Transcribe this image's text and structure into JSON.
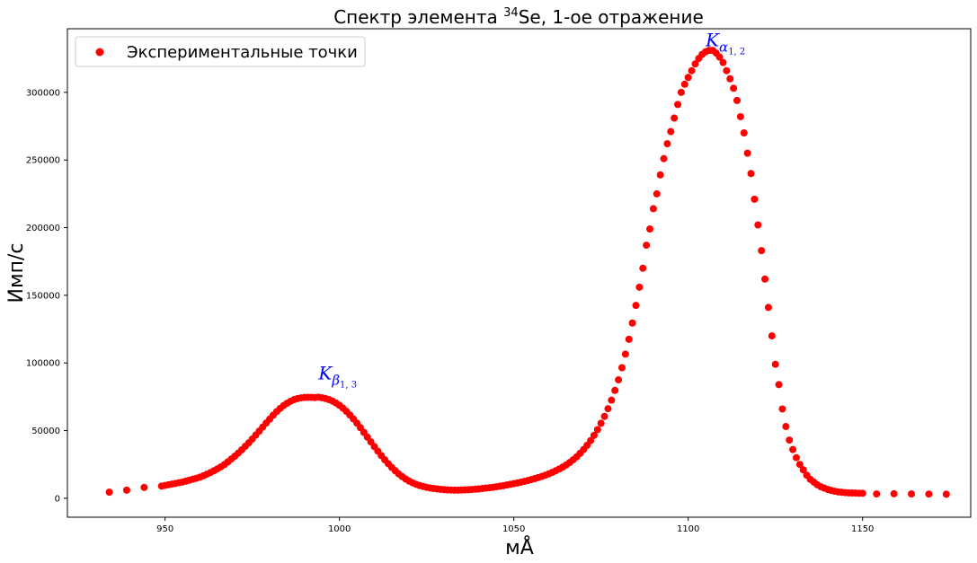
{
  "chart_data": {
    "type": "scatter",
    "title": {
      "prefix": "Спектр элемента ",
      "sup": "34",
      "suffix": "Se, 1-ое отражение"
    },
    "xlabel": "мÅ",
    "ylabel": "Имп/с",
    "xlim": [
      922,
      1181
    ],
    "ylim": [
      -14000,
      347000
    ],
    "xticks": [
      950,
      1000,
      1050,
      1100,
      1150
    ],
    "yticks": [
      0,
      50000,
      100000,
      150000,
      200000,
      250000,
      300000
    ],
    "grid": false,
    "legend": {
      "position": "top-left",
      "entries": [
        "Экспериментальные точки"
      ]
    },
    "marker_color": "#ff0000",
    "annotations": [
      {
        "base": "K",
        "sub": "β",
        "subsub": "1, 3",
        "x": 994,
        "y": 88000
      },
      {
        "base": "K",
        "sub": "α",
        "subsub": "1, 2",
        "x": 1105,
        "y": 334000
      }
    ],
    "series": [
      {
        "name": "Экспериментальные точки",
        "points": [
          [
            934,
            4500
          ],
          [
            939,
            6000
          ],
          [
            944,
            8000
          ],
          [
            949,
            9000
          ],
          [
            950,
            9500
          ],
          [
            951,
            10000
          ],
          [
            952,
            10500
          ],
          [
            953,
            11000
          ],
          [
            954,
            11500
          ],
          [
            955,
            12000
          ],
          [
            956,
            12700
          ],
          [
            957,
            13400
          ],
          [
            958,
            14100
          ],
          [
            959,
            14800
          ],
          [
            960,
            15600
          ],
          [
            961,
            16600
          ],
          [
            962,
            17800
          ],
          [
            963,
            19000
          ],
          [
            964,
            20300
          ],
          [
            965,
            21700
          ],
          [
            966,
            23200
          ],
          [
            967,
            24900
          ],
          [
            968,
            26900
          ],
          [
            969,
            29000
          ],
          [
            970,
            31100
          ],
          [
            971,
            33400
          ],
          [
            972,
            35800
          ],
          [
            973,
            38400
          ],
          [
            974,
            41000
          ],
          [
            975,
            43800
          ],
          [
            976,
            46700
          ],
          [
            977,
            49600
          ],
          [
            978,
            52600
          ],
          [
            979,
            55600
          ],
          [
            980,
            58500
          ],
          [
            981,
            61400
          ],
          [
            982,
            64000
          ],
          [
            983,
            66400
          ],
          [
            984,
            68500
          ],
          [
            985,
            70200
          ],
          [
            986,
            71700
          ],
          [
            987,
            72900
          ],
          [
            988,
            73700
          ],
          [
            989,
            74200
          ],
          [
            990,
            74500
          ],
          [
            991,
            74600
          ],
          [
            992,
            74600
          ],
          [
            993,
            74400
          ],
          [
            994,
            74700
          ],
          [
            995,
            74300
          ],
          [
            996,
            73700
          ],
          [
            997,
            72900
          ],
          [
            998,
            71800
          ],
          [
            999,
            70400
          ],
          [
            1000,
            68700
          ],
          [
            1001,
            66600
          ],
          [
            1002,
            64200
          ],
          [
            1003,
            61500
          ],
          [
            1004,
            58600
          ],
          [
            1005,
            55500
          ],
          [
            1006,
            52200
          ],
          [
            1007,
            48700
          ],
          [
            1008,
            45200
          ],
          [
            1009,
            41700
          ],
          [
            1010,
            38200
          ],
          [
            1011,
            34800
          ],
          [
            1012,
            31500
          ],
          [
            1013,
            28400
          ],
          [
            1014,
            25500
          ],
          [
            1015,
            22800
          ],
          [
            1016,
            20300
          ],
          [
            1017,
            18000
          ],
          [
            1018,
            16000
          ],
          [
            1019,
            14200
          ],
          [
            1020,
            12700
          ],
          [
            1021,
            11400
          ],
          [
            1022,
            10300
          ],
          [
            1023,
            9400
          ],
          [
            1024,
            8700
          ],
          [
            1025,
            8100
          ],
          [
            1026,
            7600
          ],
          [
            1027,
            7200
          ],
          [
            1028,
            6900
          ],
          [
            1029,
            6600
          ],
          [
            1030,
            6400
          ],
          [
            1031,
            6200
          ],
          [
            1032,
            6100
          ],
          [
            1033,
            6000
          ],
          [
            1034,
            6000
          ],
          [
            1035,
            6100
          ],
          [
            1036,
            6200
          ],
          [
            1037,
            6300
          ],
          [
            1038,
            6500
          ],
          [
            1039,
            6700
          ],
          [
            1040,
            6900
          ],
          [
            1041,
            7200
          ],
          [
            1042,
            7500
          ],
          [
            1043,
            7800
          ],
          [
            1044,
            8100
          ],
          [
            1045,
            8500
          ],
          [
            1046,
            8900
          ],
          [
            1047,
            9300
          ],
          [
            1048,
            9800
          ],
          [
            1049,
            10300
          ],
          [
            1050,
            10800
          ],
          [
            1051,
            11300
          ],
          [
            1052,
            11900
          ],
          [
            1053,
            12500
          ],
          [
            1054,
            13100
          ],
          [
            1055,
            13800
          ],
          [
            1056,
            14500
          ],
          [
            1057,
            15300
          ],
          [
            1058,
            16100
          ],
          [
            1059,
            17000
          ],
          [
            1060,
            18000
          ],
          [
            1061,
            19100
          ],
          [
            1062,
            20300
          ],
          [
            1063,
            21600
          ],
          [
            1064,
            23000
          ],
          [
            1065,
            24600
          ],
          [
            1066,
            26400
          ],
          [
            1067,
            28400
          ],
          [
            1068,
            30600
          ],
          [
            1069,
            33200
          ],
          [
            1070,
            36000
          ],
          [
            1071,
            39100
          ],
          [
            1072,
            42600
          ],
          [
            1073,
            46500
          ],
          [
            1074,
            50700
          ],
          [
            1075,
            55400
          ],
          [
            1076,
            60500
          ],
          [
            1077,
            66200
          ],
          [
            1078,
            72500
          ],
          [
            1079,
            79700
          ],
          [
            1080,
            87500
          ],
          [
            1081,
            96500
          ],
          [
            1082,
            106500
          ],
          [
            1083,
            117500
          ],
          [
            1084,
            129500
          ],
          [
            1085,
            142500
          ],
          [
            1086,
            156000
          ],
          [
            1087,
            170000
          ],
          [
            1088,
            187000
          ],
          [
            1089,
            199000
          ],
          [
            1090,
            214000
          ],
          [
            1091,
            225000
          ],
          [
            1092,
            239000
          ],
          [
            1093,
            251000
          ],
          [
            1094,
            262000
          ],
          [
            1095,
            271000
          ],
          [
            1096,
            281000
          ],
          [
            1097,
            291000
          ],
          [
            1098,
            300000
          ],
          [
            1099,
            306000
          ],
          [
            1100,
            311000
          ],
          [
            1101,
            316000
          ],
          [
            1102,
            321000
          ],
          [
            1103,
            325000
          ],
          [
            1104,
            328000
          ],
          [
            1105,
            330000
          ],
          [
            1106,
            331000
          ],
          [
            1107,
            331000
          ],
          [
            1108,
            329000
          ],
          [
            1109,
            326000
          ],
          [
            1110,
            322000
          ],
          [
            1111,
            316000
          ],
          [
            1112,
            310000
          ],
          [
            1113,
            303000
          ],
          [
            1114,
            294000
          ],
          [
            1115,
            282000
          ],
          [
            1116,
            270000
          ],
          [
            1117,
            255000
          ],
          [
            1118,
            240000
          ],
          [
            1119,
            221000
          ],
          [
            1120,
            202000
          ],
          [
            1121,
            183000
          ],
          [
            1122,
            162000
          ],
          [
            1123,
            141000
          ],
          [
            1124,
            120000
          ],
          [
            1125,
            99000
          ],
          [
            1126,
            84000
          ],
          [
            1127,
            66000
          ],
          [
            1128,
            53000
          ],
          [
            1129,
            43000
          ],
          [
            1130,
            36000
          ],
          [
            1131,
            30000
          ],
          [
            1132,
            25000
          ],
          [
            1133,
            21000
          ],
          [
            1134,
            17000
          ],
          [
            1135,
            14000
          ],
          [
            1136,
            12000
          ],
          [
            1137,
            10000
          ],
          [
            1138,
            8500
          ],
          [
            1139,
            7500
          ],
          [
            1140,
            6500
          ],
          [
            1141,
            5800
          ],
          [
            1142,
            5200
          ],
          [
            1143,
            4700
          ],
          [
            1144,
            4400
          ],
          [
            1145,
            4200
          ],
          [
            1146,
            4000
          ],
          [
            1147,
            3900
          ],
          [
            1148,
            3800
          ],
          [
            1149,
            3700
          ],
          [
            1150,
            3700
          ],
          [
            1154,
            3200
          ],
          [
            1159,
            3300
          ],
          [
            1164,
            3200
          ],
          [
            1169,
            3100
          ],
          [
            1174,
            3000
          ]
        ]
      }
    ]
  }
}
